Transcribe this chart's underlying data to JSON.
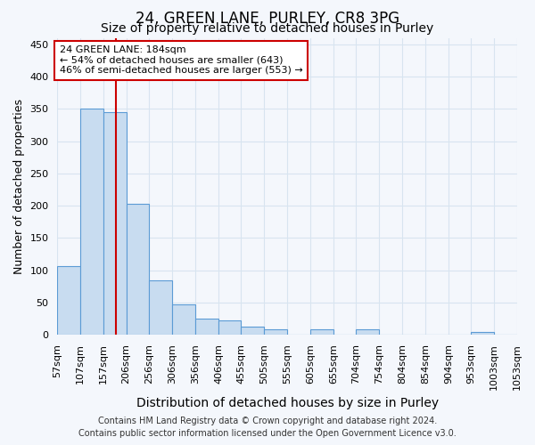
{
  "title1": "24, GREEN LANE, PURLEY, CR8 3PG",
  "title2": "Size of property relative to detached houses in Purley",
  "xlabel": "Distribution of detached houses by size in Purley",
  "ylabel": "Number of detached properties",
  "bin_labels": [
    "57sqm",
    "107sqm",
    "157sqm",
    "206sqm",
    "256sqm",
    "306sqm",
    "356sqm",
    "406sqm",
    "455sqm",
    "505sqm",
    "555sqm",
    "605sqm",
    "655sqm",
    "704sqm",
    "754sqm",
    "804sqm",
    "854sqm",
    "904sqm",
    "953sqm",
    "1003sqm",
    "1053sqm"
  ],
  "bin_starts": [
    57,
    107,
    157,
    206,
    256,
    306,
    356,
    406,
    455,
    505,
    555,
    605,
    655,
    704,
    754,
    804,
    854,
    904,
    953,
    1003
  ],
  "bin_ends": [
    107,
    157,
    206,
    256,
    306,
    356,
    406,
    455,
    505,
    555,
    605,
    655,
    704,
    754,
    804,
    854,
    904,
    953,
    1003,
    1053
  ],
  "values": [
    107,
    350,
    345,
    203,
    85,
    47,
    25,
    22,
    12,
    8,
    0,
    8,
    0,
    8,
    0,
    0,
    0,
    0,
    4,
    0
  ],
  "bar_color": "#c8dcf0",
  "bar_edge_color": "#5b9bd5",
  "vline_x": 184,
  "vline_color": "#cc0000",
  "ylim": [
    0,
    460
  ],
  "yticks": [
    0,
    50,
    100,
    150,
    200,
    250,
    300,
    350,
    400,
    450
  ],
  "annotation_line1": "24 GREEN LANE: 184sqm",
  "annotation_line2": "← 54% of detached houses are smaller (643)",
  "annotation_line3": "46% of semi-detached houses are larger (553) →",
  "annotation_box_edgecolor": "#cc0000",
  "footer": "Contains HM Land Registry data © Crown copyright and database right 2024.\nContains public sector information licensed under the Open Government Licence v3.0.",
  "bg_color": "#f4f7fc",
  "plot_bg_color": "#f4f7fc",
  "grid_color": "#d8e4f0",
  "title1_fontsize": 12,
  "title2_fontsize": 10,
  "xlabel_fontsize": 10,
  "ylabel_fontsize": 9,
  "tick_fontsize": 8,
  "footer_fontsize": 7
}
